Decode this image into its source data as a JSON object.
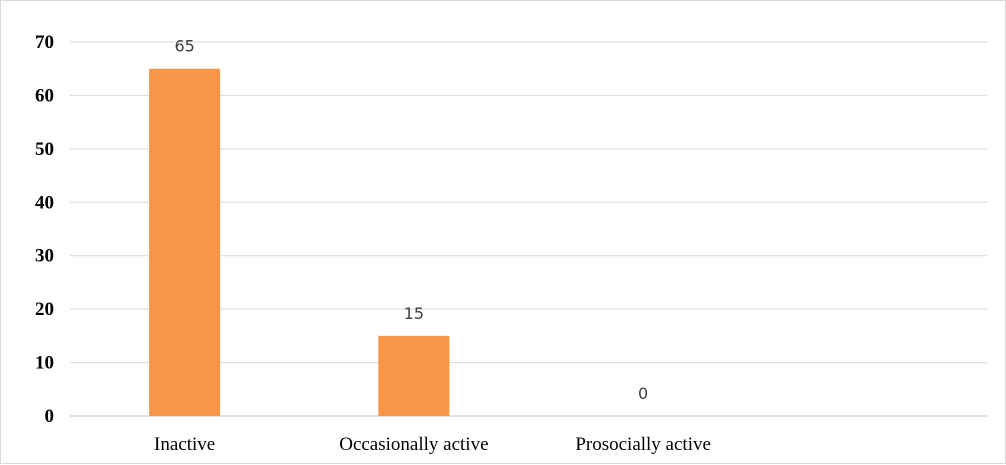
{
  "chart_data": {
    "type": "bar",
    "categories": [
      "Inactive",
      "Occasionally active",
      "Prosocially active",
      ""
    ],
    "values": [
      65,
      15,
      0,
      null
    ],
    "data_labels": [
      "65",
      "15",
      "0",
      ""
    ],
    "yticks": [
      "0",
      "10",
      "20",
      "30",
      "40",
      "50",
      "60",
      "70"
    ],
    "ylim": [
      0,
      70
    ],
    "grid": true,
    "legend": "none",
    "title": "",
    "xlabel": "",
    "ylabel": "",
    "colors": {
      "bar": "#f79646",
      "grid": "#d9d9d9",
      "axis": "#bfbfbf"
    }
  }
}
